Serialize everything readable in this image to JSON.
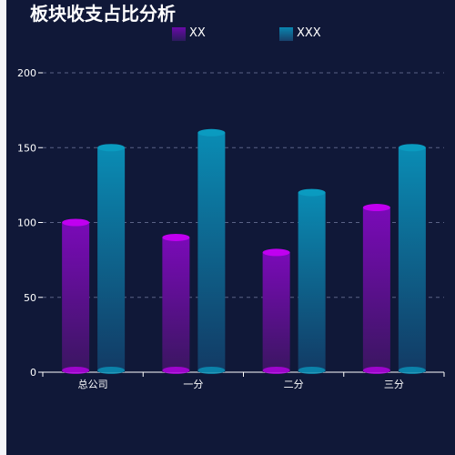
{
  "chart_data": {
    "type": "bar",
    "title": "板块收支占比分析",
    "categories": [
      "总公司",
      "一分",
      "二分",
      "三分"
    ],
    "series": [
      {
        "name": "XX",
        "values": [
          100,
          90,
          80,
          110
        ],
        "color_top": "#c000f0",
        "color_bottom": "#3a1660"
      },
      {
        "name": "XXX",
        "values": [
          150,
          160,
          120,
          150
        ],
        "color_top": "#0a9bc0",
        "color_bottom": "#123a64"
      }
    ],
    "y_ticks": [
      "0",
      "50",
      "100",
      "150",
      "200"
    ],
    "ylim": [
      0,
      200
    ],
    "grid": true,
    "legend_position": "top-center"
  },
  "colors": {
    "background": "#101838",
    "axis": "#ffffff",
    "grid": "#5a6286"
  }
}
